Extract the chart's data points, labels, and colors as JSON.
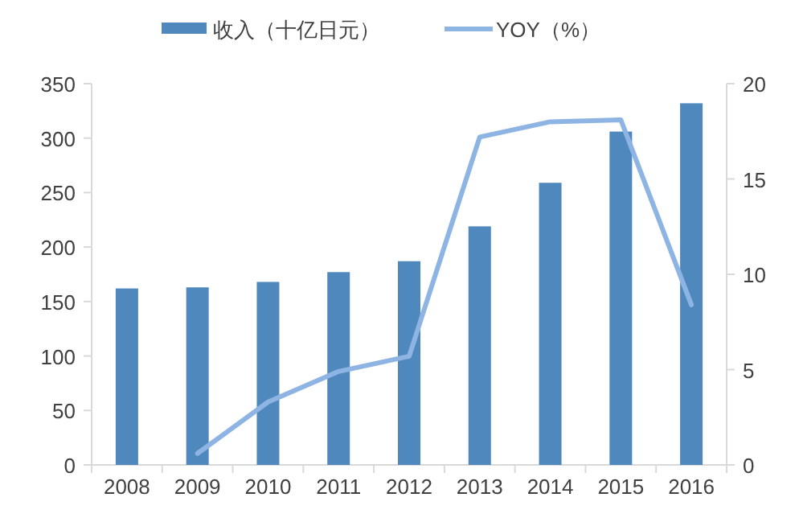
{
  "chart_data": {
    "type": "bar",
    "categories": [
      "2008",
      "2009",
      "2010",
      "2011",
      "2012",
      "2013",
      "2014",
      "2015",
      "2016"
    ],
    "series": [
      {
        "name": "收入（十亿日元）",
        "color": "#4f88bd",
        "values": [
          162,
          163,
          168,
          177,
          187,
          219,
          259,
          306,
          332
        ]
      },
      {
        "name": "YOY（%）",
        "type": "line",
        "axis": "y2",
        "color": "#8db4e2",
        "values": [
          null,
          0.6,
          3.3,
          4.9,
          5.7,
          17.2,
          18.0,
          18.1,
          8.4
        ]
      }
    ],
    "ylim": [
      0,
      350
    ],
    "yticks": [
      0,
      50,
      100,
      150,
      200,
      250,
      300,
      350
    ],
    "y2lim": [
      0,
      20
    ],
    "y2ticks": [
      0,
      5,
      10,
      15,
      20
    ],
    "grid": false,
    "legend": "top"
  }
}
